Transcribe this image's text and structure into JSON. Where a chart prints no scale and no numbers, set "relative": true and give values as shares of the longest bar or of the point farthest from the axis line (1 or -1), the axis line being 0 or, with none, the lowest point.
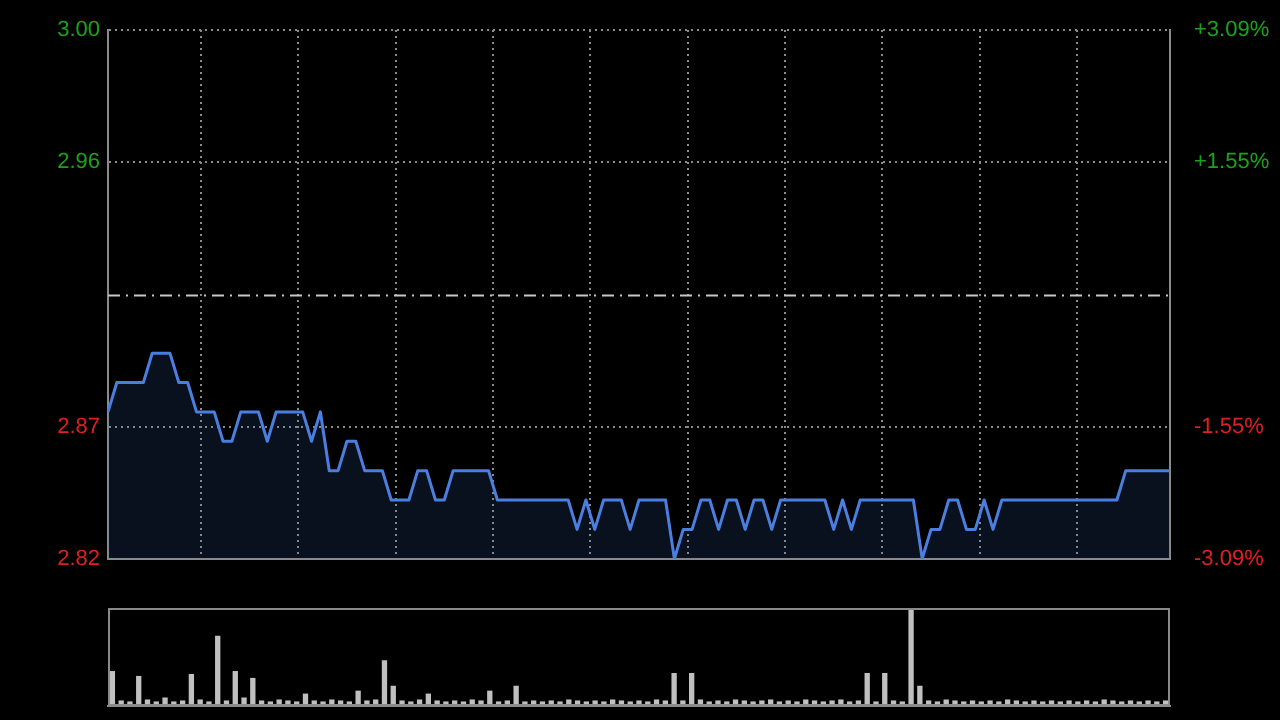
{
  "chart_data": [
    {
      "type": "area",
      "categories": [
        null,
        null,
        null,
        null,
        null,
        null,
        null,
        null,
        null,
        null,
        null,
        null,
        null,
        null,
        null,
        null,
        null,
        null,
        null,
        null,
        null,
        null,
        null,
        null,
        null,
        null,
        null,
        null,
        null,
        null,
        null,
        null,
        null,
        null,
        null,
        null,
        null,
        null,
        null,
        null,
        null,
        null,
        null,
        null,
        null,
        null,
        null,
        null,
        null,
        null,
        null,
        null,
        null,
        null,
        null,
        null,
        null,
        null,
        null,
        null,
        null,
        null,
        null,
        null,
        null,
        null,
        null,
        null,
        null,
        null,
        null,
        null,
        null,
        null,
        null,
        null,
        null,
        null,
        null,
        null,
        null,
        null,
        null,
        null,
        null,
        null,
        null,
        null,
        null,
        null,
        null,
        null,
        null,
        null,
        null,
        null,
        null,
        null,
        null,
        null,
        null,
        null,
        null,
        null,
        null,
        null,
        null,
        null,
        null,
        null,
        null,
        null,
        null,
        null,
        null,
        null,
        null,
        null,
        null,
        null,
        null
      ],
      "series": [
        {
          "color": "#4a7fe0",
          "values": [
            2.87,
            2.88,
            2.88,
            2.88,
            2.88,
            2.89,
            2.89,
            2.89,
            2.88,
            2.88,
            2.87,
            2.87,
            2.87,
            2.86,
            2.86,
            2.87,
            2.87,
            2.87,
            2.86,
            2.87,
            2.87,
            2.87,
            2.87,
            2.86,
            2.87,
            2.85,
            2.85,
            2.86,
            2.86,
            2.85,
            2.85,
            2.85,
            2.84,
            2.84,
            2.84,
            2.85,
            2.85,
            2.84,
            2.84,
            2.85,
            2.85,
            2.85,
            2.85,
            2.85,
            2.84,
            2.84,
            2.84,
            2.84,
            2.84,
            2.84,
            2.84,
            2.84,
            2.84,
            2.83,
            2.84,
            2.83,
            2.84,
            2.84,
            2.84,
            2.83,
            2.84,
            2.84,
            2.84,
            2.84,
            2.82,
            2.83,
            2.83,
            2.84,
            2.84,
            2.83,
            2.84,
            2.84,
            2.83,
            2.84,
            2.84,
            2.83,
            2.84,
            2.84,
            2.84,
            2.84,
            2.84,
            2.84,
            2.83,
            2.84,
            2.83,
            2.84,
            2.84,
            2.84,
            2.84,
            2.84,
            2.84,
            2.84,
            2.82,
            2.83,
            2.83,
            2.84,
            2.84,
            2.83,
            2.83,
            2.84,
            2.83,
            2.84,
            2.84,
            2.84,
            2.84,
            2.84,
            2.84,
            2.84,
            2.84,
            2.84,
            2.84,
            2.84,
            2.84,
            2.84,
            2.84,
            2.85,
            2.85,
            2.85,
            2.85,
            2.85,
            2.85
          ]
        }
      ],
      "ylim": [
        2.82,
        3.0
      ],
      "yticks": [
        2.82,
        {
          "value": 2.865,
          "label": "2.87"
        },
        {
          "value": 2.955,
          "label": "2.96"
        },
        {
          "value": 3.0,
          "label": "3.00"
        }
      ],
      "y2lim": [
        -3.09,
        3.09
      ],
      "y2ticks": [
        {
          "value": -3.09,
          "label": "-3.09%"
        },
        {
          "value": -1.55,
          "label": "-1.55%"
        },
        {
          "value": 1.55,
          "label": "+1.55%"
        },
        {
          "value": 3.09,
          "label": "+3.09%"
        }
      ],
      "ref_lines": [
        {
          "axis": "y",
          "value": 2.91,
          "color": "#c8c8c8",
          "line_style": "dashed"
        }
      ],
      "grid": true
    },
    {
      "type": "bar",
      "categories": [
        null,
        null,
        null,
        null,
        null,
        null,
        null,
        null,
        null,
        null,
        null,
        null,
        null,
        null,
        null,
        null,
        null,
        null,
        null,
        null,
        null,
        null,
        null,
        null,
        null,
        null,
        null,
        null,
        null,
        null,
        null,
        null,
        null,
        null,
        null,
        null,
        null,
        null,
        null,
        null,
        null,
        null,
        null,
        null,
        null,
        null,
        null,
        null,
        null,
        null,
        null,
        null,
        null,
        null,
        null,
        null,
        null,
        null,
        null,
        null,
        null,
        null,
        null,
        null,
        null,
        null,
        null,
        null,
        null,
        null,
        null,
        null,
        null,
        null,
        null,
        null,
        null,
        null,
        null,
        null,
        null,
        null,
        null,
        null,
        null,
        null,
        null,
        null,
        null,
        null,
        null,
        null,
        null,
        null,
        null,
        null,
        null,
        null,
        null,
        null,
        null,
        null,
        null,
        null,
        null,
        null,
        null,
        null,
        null,
        null,
        null,
        null,
        null,
        null,
        null,
        null,
        null,
        null,
        null,
        null,
        null
      ],
      "relative": true,
      "color": "#c0c0c0",
      "values": [
        0.35,
        0.05,
        0.04,
        0.3,
        0.06,
        0.04,
        0.08,
        0.04,
        0.05,
        0.32,
        0.06,
        0.04,
        0.71,
        0.05,
        0.35,
        0.08,
        0.28,
        0.05,
        0.04,
        0.06,
        0.05,
        0.04,
        0.12,
        0.05,
        0.04,
        0.06,
        0.05,
        0.04,
        0.15,
        0.05,
        0.06,
        0.46,
        0.2,
        0.05,
        0.04,
        0.06,
        0.12,
        0.05,
        0.04,
        0.05,
        0.04,
        0.06,
        0.05,
        0.15,
        0.04,
        0.05,
        0.2,
        0.04,
        0.05,
        0.04,
        0.05,
        0.04,
        0.06,
        0.05,
        0.04,
        0.05,
        0.04,
        0.06,
        0.05,
        0.04,
        0.05,
        0.04,
        0.06,
        0.05,
        0.33,
        0.05,
        0.33,
        0.06,
        0.04,
        0.05,
        0.04,
        0.06,
        0.05,
        0.04,
        0.05,
        0.06,
        0.04,
        0.05,
        0.04,
        0.06,
        0.05,
        0.04,
        0.05,
        0.06,
        0.04,
        0.05,
        0.33,
        0.04,
        0.33,
        0.05,
        0.04,
        1,
        0.2,
        0.05,
        0.04,
        0.06,
        0.05,
        0.04,
        0.05,
        0.04,
        0.05,
        0.04,
        0.06,
        0.05,
        0.04,
        0.05,
        0.04,
        0.05,
        0.04,
        0.05,
        0.04,
        0.05,
        0.04,
        0.06,
        0.05,
        0.04,
        0.05,
        0.04,
        0.05,
        0.04,
        0.05
      ]
    }
  ]
}
